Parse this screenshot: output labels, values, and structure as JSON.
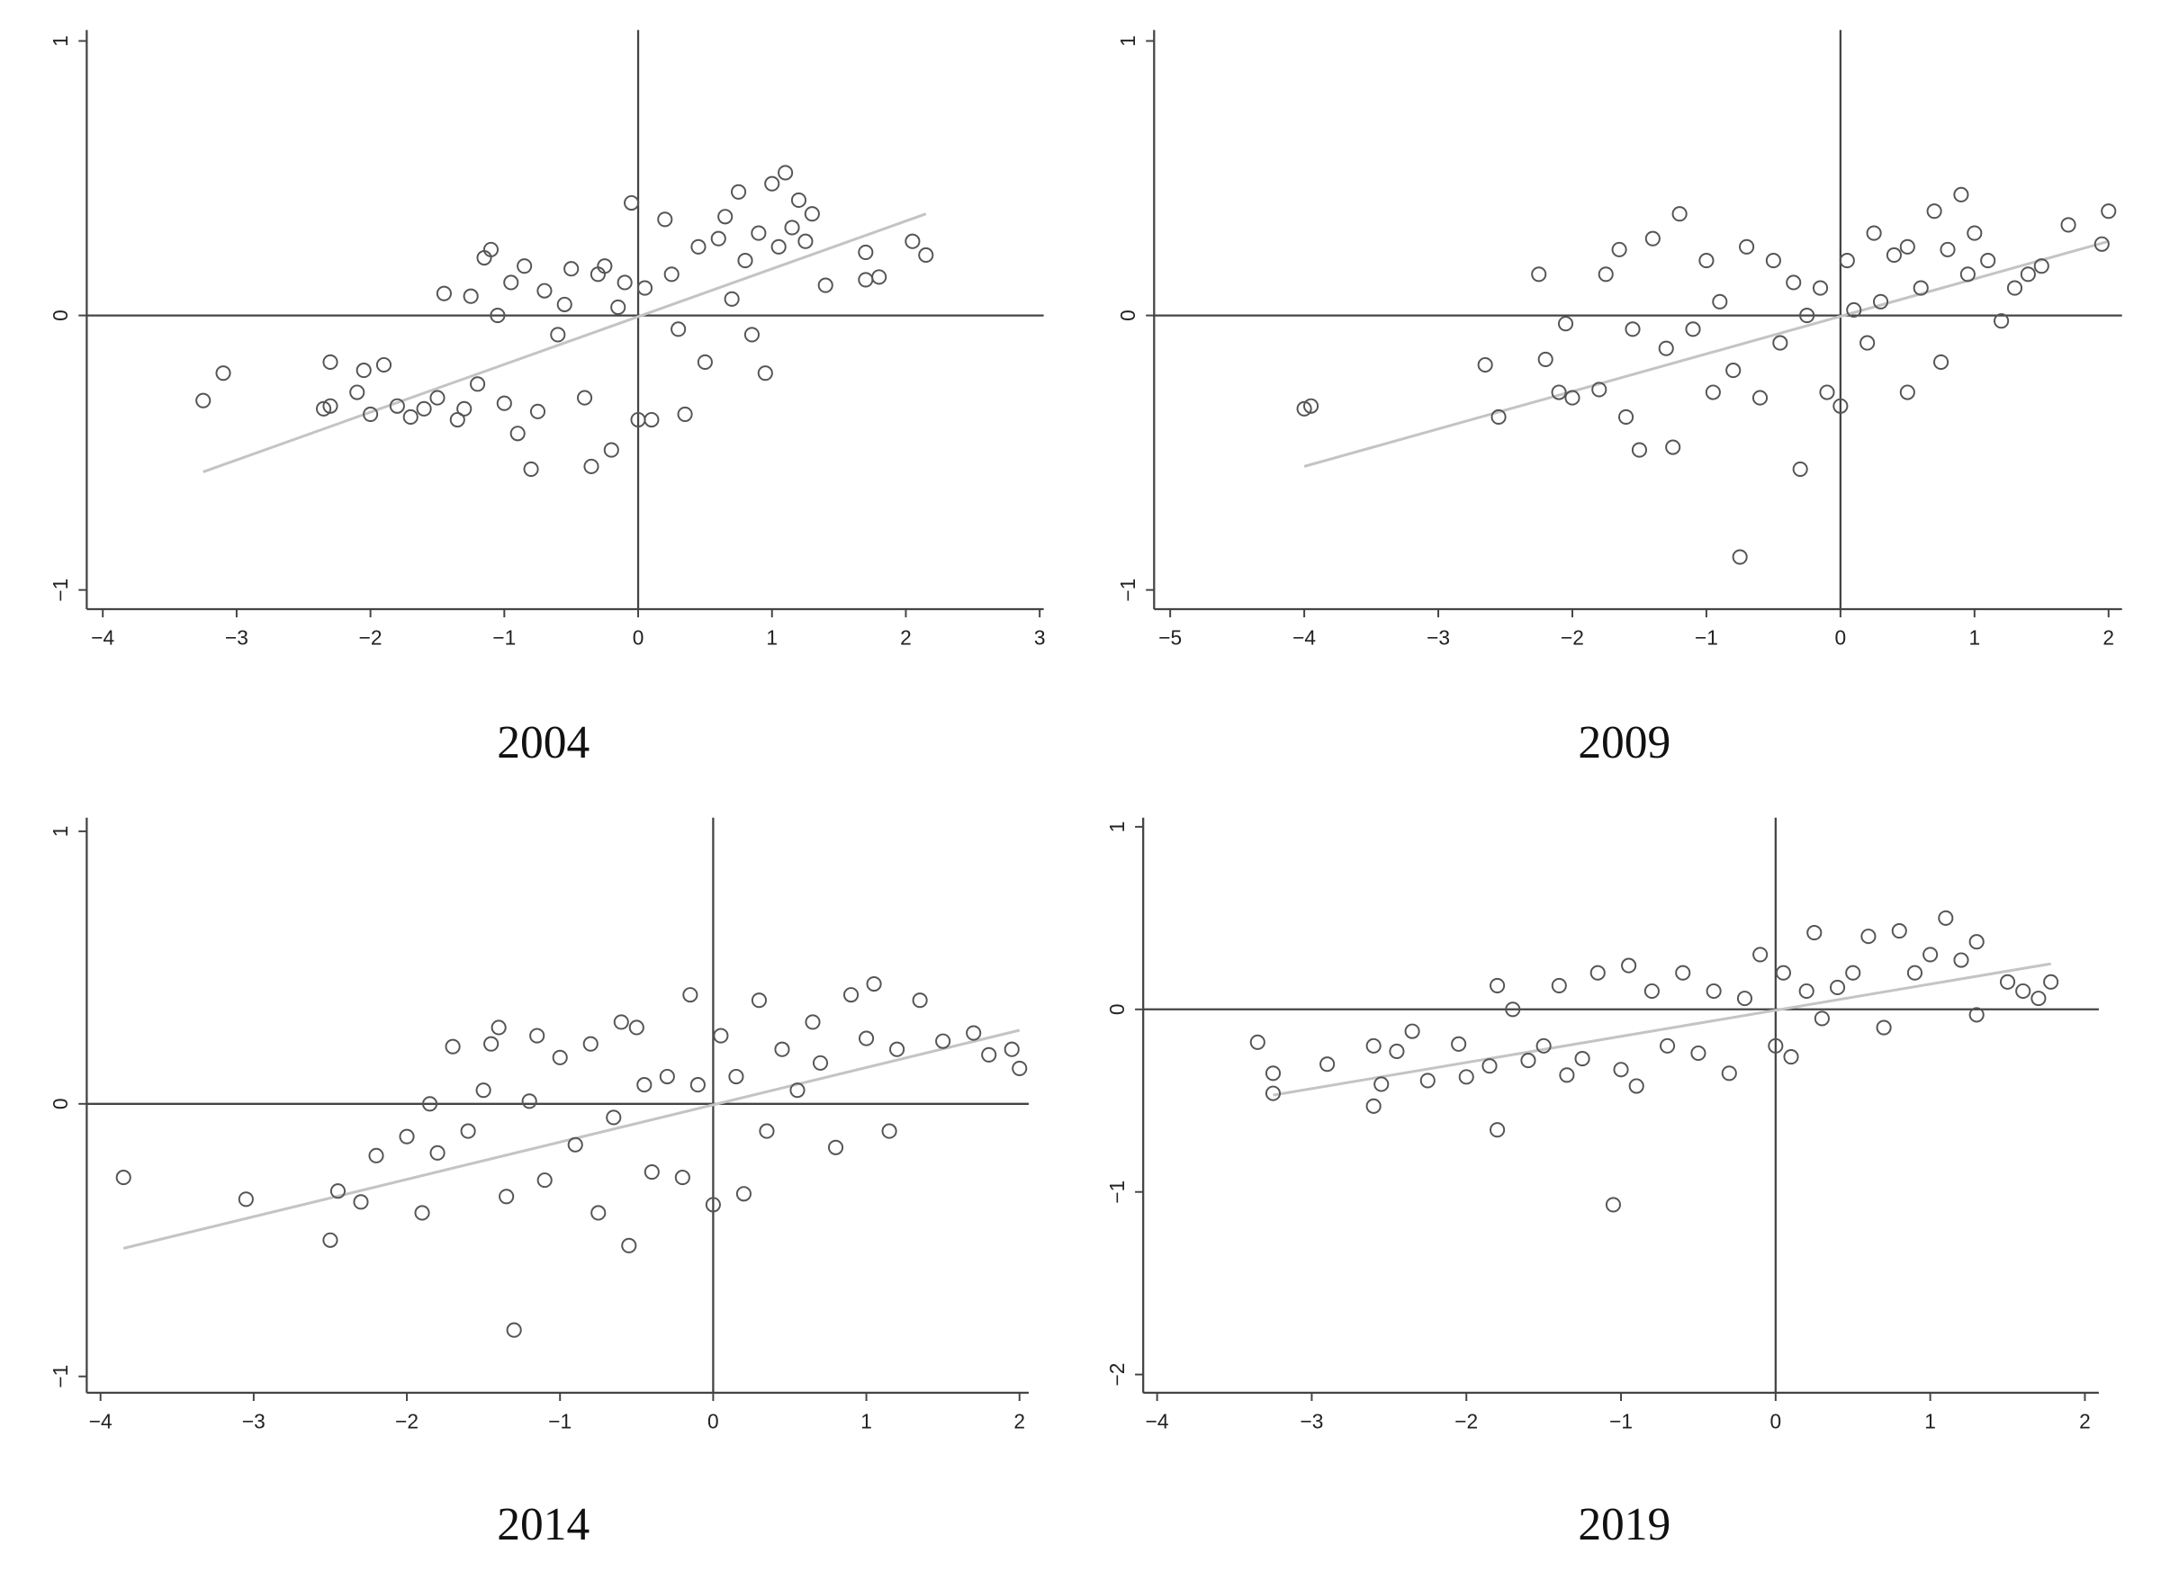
{
  "chart_data": [
    {
      "type": "scatter",
      "title": "2004",
      "marker_color": "#555555",
      "fit_color": "#c4c4c4",
      "axis_color": "#444444",
      "xlim": [
        -4.12,
        3.03
      ],
      "ylim": [
        -1.07,
        1.04
      ],
      "xticks": [
        {
          "value": -4,
          "label": "−4"
        },
        {
          "value": -3,
          "label": "−3"
        },
        {
          "value": -2,
          "label": "−2"
        },
        {
          "value": -1,
          "label": "−1"
        },
        0,
        1,
        2,
        3
      ],
      "yticks": [
        {
          "value": -1,
          "label": "−1"
        },
        0,
        1
      ],
      "x": [
        -3.25,
        -3.1,
        -2.35,
        -2.3,
        -2.3,
        -2.1,
        -2.05,
        -2.0,
        -1.9,
        -1.8,
        -1.7,
        -1.6,
        -1.5,
        -1.45,
        -1.35,
        -1.3,
        -1.25,
        -1.2,
        -1.15,
        -1.1,
        -1.05,
        -1.0,
        -0.95,
        -0.9,
        -0.85,
        -0.8,
        -0.75,
        -0.7,
        -0.6,
        -0.55,
        -0.5,
        -0.4,
        -0.35,
        -0.3,
        -0.25,
        -0.2,
        -0.15,
        -0.1,
        -0.05,
        0.0,
        0.05,
        0.1,
        0.2,
        0.25,
        0.3,
        0.35,
        0.45,
        0.5,
        0.6,
        0.65,
        0.7,
        0.75,
        0.8,
        0.85,
        0.9,
        0.95,
        1.0,
        1.05,
        1.1,
        1.15,
        1.2,
        1.25,
        1.3,
        1.4,
        1.7,
        1.7,
        1.8,
        2.05,
        2.15
      ],
      "values": [
        -0.31,
        -0.21,
        -0.34,
        -0.33,
        -0.17,
        -0.28,
        -0.2,
        -0.36,
        -0.18,
        -0.33,
        -0.37,
        -0.34,
        -0.3,
        0.08,
        -0.38,
        -0.34,
        0.07,
        -0.25,
        0.21,
        0.24,
        0.0,
        -0.32,
        0.12,
        -0.43,
        0.18,
        -0.56,
        -0.35,
        0.09,
        -0.07,
        0.04,
        0.17,
        -0.3,
        -0.55,
        0.15,
        0.18,
        -0.49,
        0.03,
        0.12,
        0.41,
        -0.38,
        0.1,
        -0.38,
        0.35,
        0.15,
        -0.05,
        -0.36,
        0.25,
        -0.17,
        0.28,
        0.36,
        0.06,
        0.45,
        0.2,
        -0.07,
        0.3,
        -0.21,
        0.48,
        0.25,
        0.52,
        0.32,
        0.42,
        0.27,
        0.37,
        0.11,
        0.23,
        0.13,
        0.14,
        0.27,
        0.22
      ],
      "fit": {
        "x": [
          -3.25,
          2.15
        ],
        "values": [
          -0.57,
          0.37
        ]
      }
    },
    {
      "type": "scatter",
      "title": "2009",
      "marker_color": "#555555",
      "fit_color": "#c4c4c4",
      "axis_color": "#444444",
      "xlim": [
        -5.12,
        2.1
      ],
      "ylim": [
        -1.07,
        1.04
      ],
      "xticks": [
        {
          "value": -5,
          "label": "−5"
        },
        {
          "value": -4,
          "label": "−4"
        },
        {
          "value": -3,
          "label": "−3"
        },
        {
          "value": -2,
          "label": "−2"
        },
        {
          "value": -1,
          "label": "−1"
        },
        0,
        1,
        2
      ],
      "yticks": [
        {
          "value": -1,
          "label": "−1"
        },
        0,
        1
      ],
      "x": [
        -4.0,
        -3.95,
        -2.65,
        -2.55,
        -2.25,
        -2.2,
        -2.1,
        -2.05,
        -2.0,
        -1.8,
        -1.75,
        -1.65,
        -1.6,
        -1.55,
        -1.5,
        -1.4,
        -1.3,
        -1.25,
        -1.2,
        -1.1,
        -1.0,
        -0.95,
        -0.9,
        -0.8,
        -0.75,
        -0.7,
        -0.6,
        -0.5,
        -0.45,
        -0.35,
        -0.3,
        -0.25,
        -0.15,
        -0.1,
        0.0,
        0.05,
        0.1,
        0.2,
        0.25,
        0.3,
        0.4,
        0.5,
        0.5,
        0.6,
        0.7,
        0.75,
        0.8,
        0.9,
        0.95,
        1.0,
        1.1,
        1.2,
        1.3,
        1.4,
        1.5,
        1.7,
        1.95,
        2.0
      ],
      "values": [
        -0.34,
        -0.33,
        -0.18,
        -0.37,
        0.15,
        -0.16,
        -0.28,
        -0.03,
        -0.3,
        -0.27,
        0.15,
        0.24,
        -0.37,
        -0.05,
        -0.49,
        0.28,
        -0.12,
        -0.48,
        0.37,
        -0.05,
        0.2,
        -0.28,
        0.05,
        -0.2,
        -0.88,
        0.25,
        -0.3,
        0.2,
        -0.1,
        0.12,
        -0.56,
        0.0,
        0.1,
        -0.28,
        -0.33,
        0.2,
        0.02,
        -0.1,
        0.3,
        0.05,
        0.22,
        0.25,
        -0.28,
        0.1,
        0.38,
        -0.17,
        0.24,
        0.44,
        0.15,
        0.3,
        0.2,
        -0.02,
        0.1,
        0.15,
        0.18,
        0.33,
        0.26,
        0.38
      ],
      "fit": {
        "x": [
          -4.0,
          2.0
        ],
        "values": [
          -0.55,
          0.27
        ]
      }
    },
    {
      "type": "scatter",
      "title": "2014",
      "marker_color": "#555555",
      "fit_color": "#c4c4c4",
      "axis_color": "#444444",
      "xlim": [
        -4.09,
        2.06
      ],
      "ylim": [
        -1.06,
        1.05
      ],
      "xticks": [
        {
          "value": -4,
          "label": "−4"
        },
        {
          "value": -3,
          "label": "−3"
        },
        {
          "value": -2,
          "label": "−2"
        },
        {
          "value": -1,
          "label": "−1"
        },
        0,
        1,
        2
      ],
      "yticks": [
        {
          "value": -1,
          "label": "−1"
        },
        0,
        1
      ],
      "x": [
        -3.85,
        -3.05,
        -2.5,
        -2.45,
        -2.3,
        -2.2,
        -2.0,
        -1.9,
        -1.85,
        -1.8,
        -1.7,
        -1.6,
        -1.5,
        -1.45,
        -1.4,
        -1.35,
        -1.3,
        -1.2,
        -1.15,
        -1.1,
        -1.0,
        -0.9,
        -0.8,
        -0.75,
        -0.65,
        -0.6,
        -0.55,
        -0.5,
        -0.45,
        -0.4,
        -0.3,
        -0.2,
        -0.15,
        -0.1,
        0.0,
        0.05,
        0.15,
        0.2,
        0.3,
        0.35,
        0.45,
        0.55,
        0.65,
        0.7,
        0.8,
        0.9,
        1.0,
        1.05,
        1.15,
        1.2,
        1.35,
        1.5,
        1.7,
        1.8,
        1.95,
        2.0
      ],
      "values": [
        -0.27,
        -0.35,
        -0.5,
        -0.32,
        -0.36,
        -0.19,
        -0.12,
        -0.4,
        0.0,
        -0.18,
        0.21,
        -0.1,
        0.05,
        0.22,
        0.28,
        -0.34,
        -0.83,
        0.01,
        0.25,
        -0.28,
        0.17,
        -0.15,
        0.22,
        -0.4,
        -0.05,
        0.3,
        -0.52,
        0.28,
        0.07,
        -0.25,
        0.1,
        -0.27,
        0.4,
        0.07,
        -0.37,
        0.25,
        0.1,
        -0.33,
        0.38,
        -0.1,
        0.2,
        0.05,
        0.3,
        0.15,
        -0.16,
        0.4,
        0.24,
        0.44,
        -0.1,
        0.2,
        0.38,
        0.23,
        0.26,
        0.18,
        0.2,
        0.13
      ],
      "fit": {
        "x": [
          -3.85,
          2.0
        ],
        "values": [
          -0.53,
          0.27
        ]
      }
    },
    {
      "type": "scatter",
      "title": "2019",
      "marker_color": "#555555",
      "fit_color": "#c4c4c4",
      "axis_color": "#444444",
      "xlim": [
        -4.09,
        2.09
      ],
      "ylim": [
        -2.1,
        1.05
      ],
      "xticks": [
        {
          "value": -4,
          "label": "−4"
        },
        {
          "value": -3,
          "label": "−3"
        },
        {
          "value": -2,
          "label": "−2"
        },
        {
          "value": -1,
          "label": "−1"
        },
        0,
        1,
        2
      ],
      "yticks": [
        {
          "value": -2,
          "label": "−2"
        },
        {
          "value": -1,
          "label": "−1"
        },
        0,
        1
      ],
      "x": [
        -3.35,
        -3.25,
        -3.25,
        -2.9,
        -2.6,
        -2.6,
        -2.55,
        -2.45,
        -2.35,
        -2.25,
        -2.05,
        -2.0,
        -1.85,
        -1.8,
        -1.8,
        -1.7,
        -1.6,
        -1.5,
        -1.4,
        -1.35,
        -1.25,
        -1.15,
        -1.05,
        -1.0,
        -0.95,
        -0.9,
        -0.8,
        -0.7,
        -0.6,
        -0.5,
        -0.4,
        -0.3,
        -0.2,
        -0.1,
        0.0,
        0.05,
        0.1,
        0.2,
        0.25,
        0.3,
        0.4,
        0.5,
        0.6,
        0.7,
        0.8,
        0.9,
        1.0,
        1.1,
        1.2,
        1.3,
        1.3,
        1.5,
        1.6,
        1.7,
        1.78
      ],
      "values": [
        -0.18,
        -0.35,
        -0.46,
        -0.3,
        -0.2,
        -0.53,
        -0.41,
        -0.23,
        -0.12,
        -0.39,
        -0.19,
        -0.37,
        -0.31,
        0.13,
        -0.66,
        0.0,
        -0.28,
        -0.2,
        0.13,
        -0.36,
        -0.27,
        0.2,
        -1.07,
        -0.33,
        0.24,
        -0.42,
        0.1,
        -0.2,
        0.2,
        -0.24,
        0.1,
        -0.35,
        0.06,
        0.3,
        -0.2,
        0.2,
        -0.26,
        0.1,
        0.42,
        -0.05,
        0.12,
        0.2,
        0.4,
        -0.1,
        0.43,
        0.2,
        0.3,
        0.5,
        0.27,
        0.37,
        -0.03,
        0.15,
        0.1,
        0.06,
        0.15
      ],
      "fit": {
        "x": [
          -3.25,
          1.78
        ],
        "values": [
          -0.47,
          0.25
        ]
      }
    }
  ]
}
